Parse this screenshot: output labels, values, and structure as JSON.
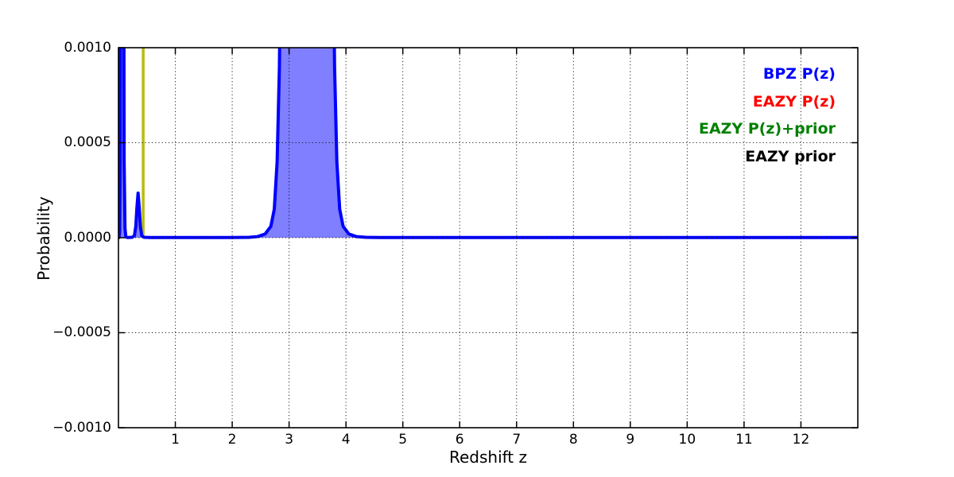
{
  "figure": {
    "background": "#ffffff"
  },
  "axes": {
    "xlabel": "Redshift z",
    "ylabel": "Probability",
    "x_ticks": [
      {
        "value": 1,
        "label": "1"
      },
      {
        "value": 2,
        "label": "2"
      },
      {
        "value": 3,
        "label": "3"
      },
      {
        "value": 4,
        "label": "4"
      },
      {
        "value": 5,
        "label": "5"
      },
      {
        "value": 6,
        "label": "6"
      },
      {
        "value": 7,
        "label": "7"
      },
      {
        "value": 8,
        "label": "8"
      },
      {
        "value": 9,
        "label": "9"
      },
      {
        "value": 10,
        "label": "10"
      },
      {
        "value": 11,
        "label": "11"
      },
      {
        "value": 12,
        "label": "12"
      }
    ],
    "y_ticks": [
      {
        "value": 0.001,
        "label": "0.0010"
      },
      {
        "value": 0.0005,
        "label": "0.0005"
      },
      {
        "value": 0.0,
        "label": "0.0000"
      },
      {
        "value": -0.0005,
        "label": "−0.0005"
      },
      {
        "value": -0.001,
        "label": "−0.0010"
      }
    ]
  },
  "legend": {
    "position": "upper-right",
    "entries": [
      {
        "label": "BPZ P(z)",
        "color": "#0000ff"
      },
      {
        "label": "EAZY P(z)",
        "color": "#ff0000"
      },
      {
        "label": "EAZY P(z)+prior",
        "color": "#008000"
      },
      {
        "label": "EAZY prior",
        "color": "#000000"
      }
    ]
  },
  "chart_data": {
    "type": "line",
    "title": "",
    "xlabel": "Redshift z",
    "ylabel": "Probability",
    "xlim": [
      0,
      13
    ],
    "ylim": [
      -0.001,
      0.001
    ],
    "grid": true,
    "grid_style": "dotted",
    "series": [
      {
        "name": "BPZ P(z)",
        "color": "#0000ff",
        "fill_color": "rgba(0,0,255,0.5)",
        "line_width": 4,
        "clipped_at_top": true,
        "points": [
          [
            0.0,
            0.0
          ],
          [
            0.01,
            1e-06
          ],
          [
            0.02,
            3e-05
          ],
          [
            0.03,
            0.0004
          ],
          [
            0.04,
            0.002
          ],
          [
            0.05,
            0.004
          ],
          [
            0.08,
            0.004
          ],
          [
            0.09,
            0.002
          ],
          [
            0.1,
            0.0004
          ],
          [
            0.115,
            5e-05
          ],
          [
            0.13,
            4e-06
          ],
          [
            0.16,
            1e-06
          ],
          [
            0.24,
            2e-06
          ],
          [
            0.28,
            1e-05
          ],
          [
            0.305,
            6e-05
          ],
          [
            0.325,
            0.00016
          ],
          [
            0.345,
            0.000235
          ],
          [
            0.365,
            0.00016
          ],
          [
            0.385,
            6e-05
          ],
          [
            0.41,
            1e-05
          ],
          [
            0.45,
            2e-06
          ],
          [
            0.55,
            1e-06
          ],
          [
            0.8,
            1e-06
          ],
          [
            1.2,
            1e-06
          ],
          [
            1.6,
            1e-06
          ],
          [
            2.0,
            1e-06
          ],
          [
            2.3,
            2e-06
          ],
          [
            2.45,
            6e-06
          ],
          [
            2.58,
            2e-05
          ],
          [
            2.68,
            6e-05
          ],
          [
            2.74,
            0.00015
          ],
          [
            2.79,
            0.0004
          ],
          [
            2.83,
            0.0009
          ],
          [
            2.87,
            0.002
          ],
          [
            2.92,
            0.0035
          ],
          [
            3.0,
            0.0042
          ],
          [
            3.2,
            0.0044
          ],
          [
            3.4,
            0.0044
          ],
          [
            3.6,
            0.0042
          ],
          [
            3.7,
            0.0035
          ],
          [
            3.76,
            0.002
          ],
          [
            3.8,
            0.0009
          ],
          [
            3.84,
            0.0004
          ],
          [
            3.89,
            0.00015
          ],
          [
            3.95,
            6e-05
          ],
          [
            4.05,
            2e-05
          ],
          [
            4.18,
            6e-06
          ],
          [
            4.35,
            2e-06
          ],
          [
            4.6,
            1e-06
          ],
          [
            5.0,
            1e-06
          ],
          [
            5.5,
            1e-06
          ],
          [
            6.0,
            1e-06
          ],
          [
            6.5,
            1e-06
          ],
          [
            7.0,
            1e-06
          ],
          [
            7.5,
            1e-06
          ],
          [
            8.0,
            1e-06
          ],
          [
            8.5,
            1e-06
          ],
          [
            9.0,
            1e-06
          ],
          [
            9.5,
            1e-06
          ],
          [
            10.0,
            1e-06
          ],
          [
            10.5,
            1e-06
          ],
          [
            11.0,
            1e-06
          ],
          [
            11.5,
            1e-06
          ],
          [
            12.0,
            1e-06
          ],
          [
            12.5,
            1e-06
          ],
          [
            13.0,
            1e-06
          ]
        ]
      }
    ],
    "vertical_lines": [
      {
        "name": "yellow-marker-line",
        "x": 0.435,
        "y_from": 0.0,
        "y_to": 0.0012,
        "color": "#b8bc10",
        "line_width": 3.5
      }
    ]
  }
}
